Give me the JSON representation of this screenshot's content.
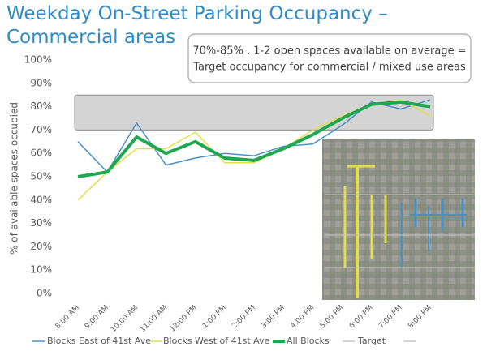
{
  "chart_data": {
    "type": "line",
    "title": [
      "Weekday On-Street Parking Occupancy –",
      "Commercial areas"
    ],
    "annotation": [
      "70%-85% , 1-2 open spaces available on average =",
      "Target occupancy for commercial / mixed use areas"
    ],
    "y_label": "% of available spaces occupied",
    "categories": [
      "8:00 AM",
      "9:00 AM",
      "10:00 AM",
      "11:00 AM",
      "12:00 PM",
      "1:00 PM",
      "2:00 PM",
      "3:00 PM",
      "4:00 PM",
      "5:00 PM",
      "6:00 PM",
      "7:00 PM",
      "8:00 PM"
    ],
    "series": [
      {
        "name": "Blocks East of 41st Ave",
        "color": "#4a90c8",
        "width": 1.5,
        "values": [
          65,
          52,
          73,
          55,
          58,
          60,
          59,
          63,
          64,
          72,
          82,
          79,
          83
        ]
      },
      {
        "name": "Blocks West of 41st Ave",
        "color": "#e3df4c",
        "width": 1.5,
        "values": [
          40,
          52,
          62,
          62,
          69,
          56,
          56,
          62,
          70,
          76,
          81,
          83,
          76
        ]
      },
      {
        "name": "All Blocks",
        "color": "#1fa84f",
        "width": 4,
        "values": [
          50,
          52,
          67,
          60,
          65,
          58,
          57,
          62,
          68,
          75,
          81,
          82,
          80
        ]
      }
    ],
    "target": {
      "name": "Target",
      "low": 70,
      "high": 85,
      "color": "#d4d4d4"
    },
    "ylim": [
      0,
      100
    ],
    "yticks": [
      {
        "value": 0,
        "label": "0%"
      },
      {
        "value": 10,
        "label": "10%"
      },
      {
        "value": 20,
        "label": "20%"
      },
      {
        "value": 30,
        "label": "30%"
      },
      {
        "value": 40,
        "label": "40%"
      },
      {
        "value": 50,
        "label": "50%"
      },
      {
        "value": 60,
        "label": "60%"
      },
      {
        "value": 70,
        "label": "70%"
      },
      {
        "value": 80,
        "label": "80%"
      },
      {
        "value": 90,
        "label": "90%"
      },
      {
        "value": 100,
        "label": "100%"
      }
    ],
    "grid": false
  }
}
